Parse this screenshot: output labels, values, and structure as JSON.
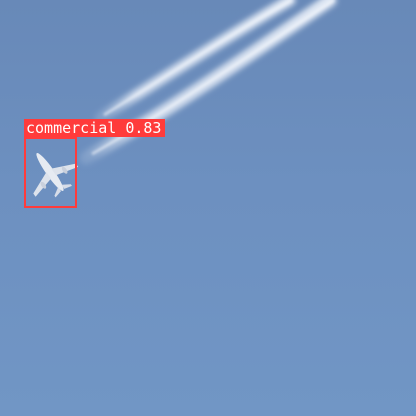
{
  "detections": [
    {
      "class": "commercial",
      "score": "0.83",
      "box_color": "#ff3b3b"
    }
  ]
}
